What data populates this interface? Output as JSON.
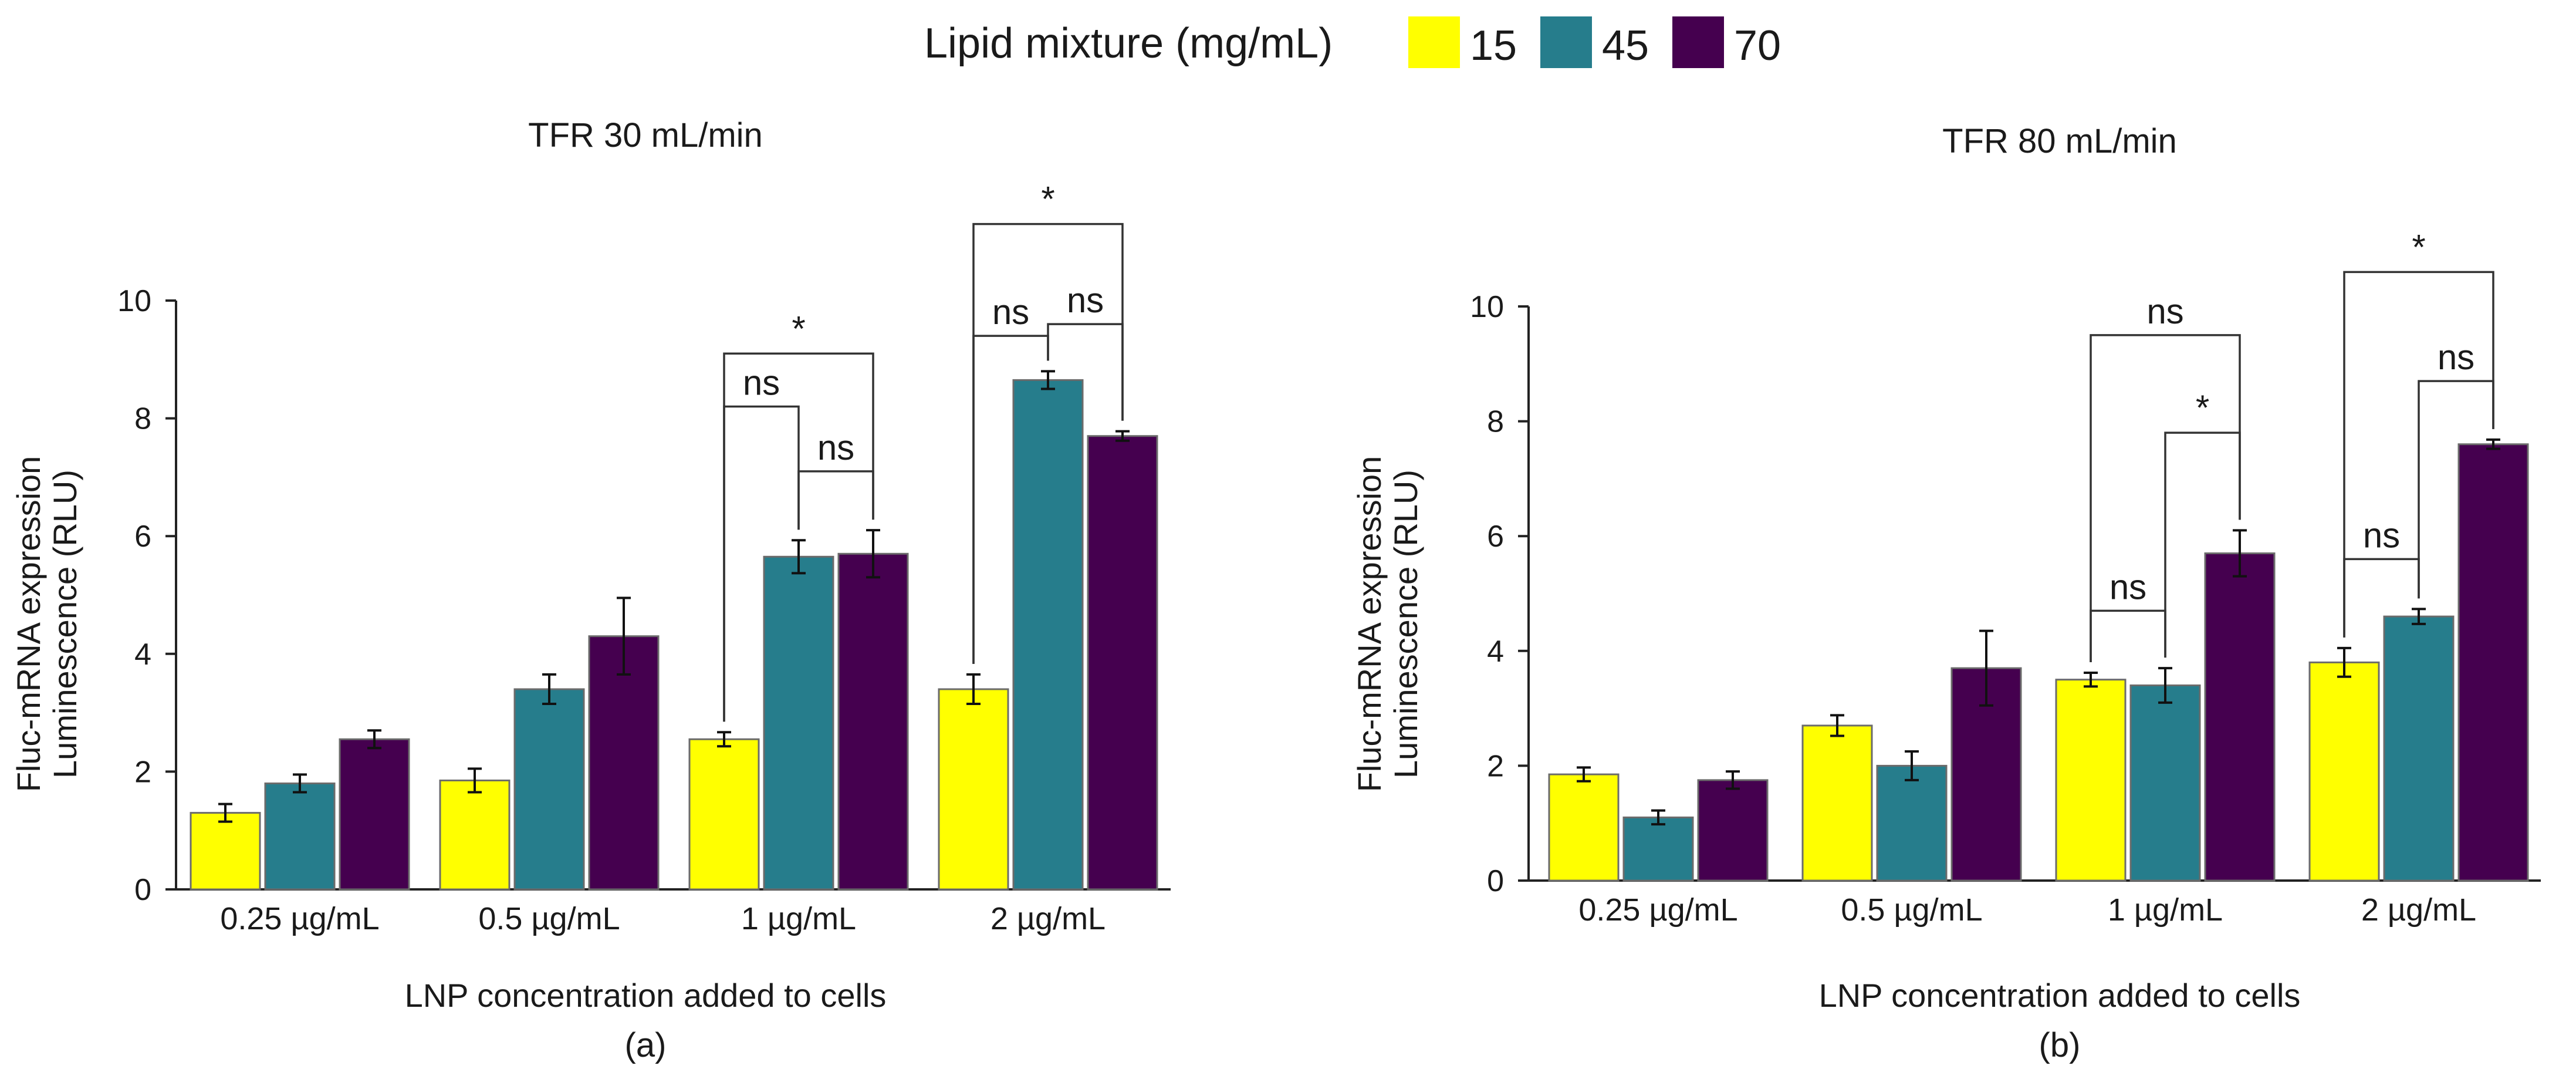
{
  "legend": {
    "title": "Lipid mixture (mg/mL)",
    "items": [
      {
        "label": "15",
        "color": "#ffff00"
      },
      {
        "label": "45",
        "color": "#267d8c"
      },
      {
        "label": "70",
        "color": "#45004f"
      }
    ]
  },
  "chart_data": [
    {
      "type": "bar",
      "title": "TFR 30 mL/min",
      "xlabel": "LNP concentration added to cells",
      "ylabel_lines": [
        "Fluc-mRNA expression",
        "Luminescence (RLU)"
      ],
      "sublabel": "(a)",
      "ylim": [
        0,
        10
      ],
      "yticks": [
        0,
        2,
        4,
        6,
        8,
        10
      ],
      "categories": [
        "0.25 µg/mL",
        "0.5 µg/mL",
        "1 µg/mL",
        "2 µg/mL"
      ],
      "series": [
        {
          "name": "15",
          "values": [
            1.3,
            1.85,
            2.55,
            3.4
          ],
          "errors": [
            0.15,
            0.2,
            0.12,
            0.25
          ]
        },
        {
          "name": "45",
          "values": [
            1.8,
            3.4,
            5.65,
            8.65
          ],
          "errors": [
            0.15,
            0.25,
            0.28,
            0.15
          ]
        },
        {
          "name": "70",
          "values": [
            2.55,
            4.3,
            5.7,
            7.7
          ],
          "errors": [
            0.15,
            0.65,
            0.4,
            0.08
          ]
        }
      ],
      "significance": [
        {
          "category": 2,
          "from": 0,
          "to": 1,
          "label": "ns",
          "level": 8.2
        },
        {
          "category": 2,
          "from": 1,
          "to": 2,
          "label": "ns",
          "level": 7.1
        },
        {
          "category": 2,
          "from": 0,
          "to": 2,
          "label": "*",
          "level": 9.1
        },
        {
          "category": 3,
          "from": 0,
          "to": 1,
          "label": "ns",
          "level": 9.4
        },
        {
          "category": 3,
          "from": 1,
          "to": 2,
          "label": "ns",
          "level": 9.6
        },
        {
          "category": 3,
          "from": 0,
          "to": 2,
          "label": "*",
          "level": 11.3
        }
      ]
    },
    {
      "type": "bar",
      "title": "TFR 80 mL/min",
      "xlabel": "LNP concentration added to cells",
      "ylabel_lines": [
        "Fluc-mRNA expression",
        "Luminescence (RLU)"
      ],
      "sublabel": "(b)",
      "ylim": [
        0,
        10
      ],
      "yticks": [
        0,
        2,
        4,
        6,
        8,
        10
      ],
      "categories": [
        "0.25 µg/mL",
        "0.5 µg/mL",
        "1 µg/mL",
        "2 µg/mL"
      ],
      "series": [
        {
          "name": "15",
          "values": [
            1.85,
            2.7,
            3.5,
            3.8
          ],
          "errors": [
            0.12,
            0.18,
            0.12,
            0.25
          ]
        },
        {
          "name": "45",
          "values": [
            1.1,
            2.0,
            3.4,
            4.6
          ],
          "errors": [
            0.12,
            0.25,
            0.3,
            0.13
          ]
        },
        {
          "name": "70",
          "values": [
            1.75,
            3.7,
            5.7,
            7.6
          ],
          "errors": [
            0.15,
            0.65,
            0.4,
            0.08
          ]
        }
      ],
      "significance": [
        {
          "category": 2,
          "from": 0,
          "to": 1,
          "label": "ns",
          "level": 4.7
        },
        {
          "category": 2,
          "from": 1,
          "to": 2,
          "label": "*",
          "level": 7.8
        },
        {
          "category": 2,
          "from": 0,
          "to": 2,
          "label": "ns",
          "level": 9.5
        },
        {
          "category": 3,
          "from": 0,
          "to": 1,
          "label": "ns",
          "level": 5.6
        },
        {
          "category": 3,
          "from": 1,
          "to": 2,
          "label": "ns",
          "level": 8.7
        },
        {
          "category": 3,
          "from": 0,
          "to": 2,
          "label": "*",
          "level": 10.6
        }
      ]
    }
  ]
}
